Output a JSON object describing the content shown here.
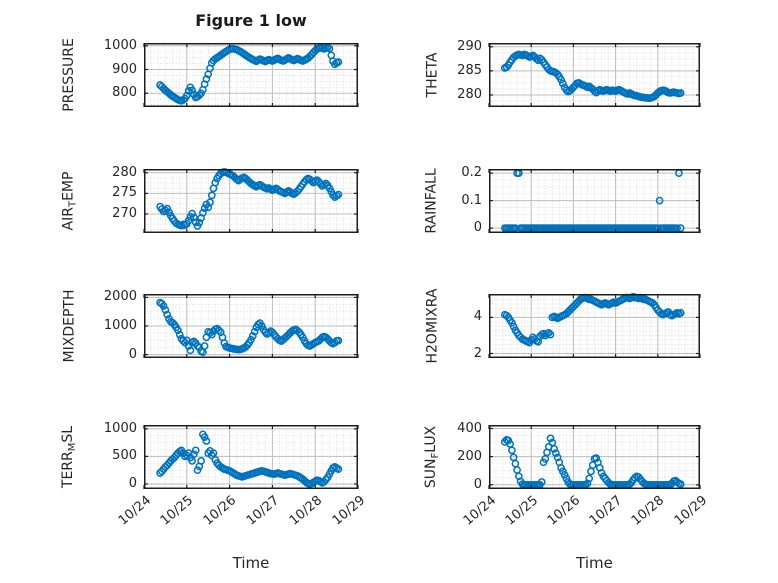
{
  "title": "Figure 1 low",
  "xlabel": "Time",
  "marker_color": "#0072BD",
  "axis": {
    "xlim": [
      24,
      29
    ],
    "xtick_values": [
      24,
      25,
      26,
      27,
      28,
      29
    ],
    "xtick_labels": [
      "10/24",
      "10/25",
      "10/26",
      "10/27",
      "10/28",
      "10/29"
    ],
    "xminor_step": 0.1666667,
    "grid": "on",
    "minor_grid": "dotted"
  },
  "x": [
    24.375,
    24.417,
    24.458,
    24.5,
    24.542,
    24.583,
    24.625,
    24.667,
    24.708,
    24.75,
    24.792,
    24.833,
    24.875,
    24.917,
    24.958,
    25,
    25.042,
    25.083,
    25.125,
    25.167,
    25.208,
    25.25,
    25.292,
    25.333,
    25.375,
    25.417,
    25.458,
    25.5,
    25.542,
    25.583,
    25.625,
    25.667,
    25.708,
    25.75,
    25.792,
    25.833,
    25.875,
    25.917,
    25.958,
    26,
    26.042,
    26.083,
    26.125,
    26.167,
    26.208,
    26.25,
    26.292,
    26.333,
    26.375,
    26.417,
    26.458,
    26.5,
    26.542,
    26.583,
    26.625,
    26.667,
    26.708,
    26.75,
    26.792,
    26.833,
    26.875,
    26.917,
    26.958,
    27,
    27.042,
    27.083,
    27.125,
    27.167,
    27.208,
    27.25,
    27.292,
    27.333,
    27.375,
    27.417,
    27.458,
    27.5,
    27.542,
    27.583,
    27.625,
    27.667,
    27.708,
    27.75,
    27.792,
    27.833,
    27.875,
    27.917,
    27.958,
    28,
    28.042,
    28.083,
    28.125,
    28.167,
    28.208,
    28.25,
    28.292,
    28.333,
    28.375,
    28.417,
    28.458,
    28.5,
    28.542
  ],
  "chart_data": [
    {
      "type": "scatter",
      "name": "PRESSURE",
      "ylabel_parts": [
        [
          "PRESSURE",
          0
        ]
      ],
      "yticks": [
        800,
        900,
        1000
      ],
      "ylim": [
        742,
        1012
      ],
      "yminor": 25,
      "y": [
        835,
        828,
        820,
        812,
        806,
        800,
        793,
        788,
        783,
        778,
        773,
        770,
        768,
        772,
        778,
        790,
        810,
        825,
        812,
        795,
        782,
        786,
        792,
        800,
        815,
        838,
        860,
        880,
        905,
        928,
        938,
        945,
        950,
        955,
        960,
        966,
        971,
        976,
        981,
        985,
        987,
        988,
        986,
        984,
        980,
        976,
        971,
        966,
        961,
        956,
        951,
        946,
        942,
        938,
        935,
        940,
        944,
        941,
        937,
        934,
        938,
        942,
        939,
        936,
        940,
        944,
        947,
        943,
        939,
        936,
        940,
        945,
        949,
        945,
        941,
        938,
        942,
        946,
        943,
        939,
        936,
        940,
        944,
        948,
        955,
        963,
        972,
        980,
        986,
        990,
        992,
        990,
        987,
        990,
        993,
        988,
        960,
        935,
        922,
        928,
        932
      ]
    },
    {
      "type": "scatter",
      "name": "THETA",
      "ylabel_parts": [
        [
          "THETA",
          0
        ]
      ],
      "yticks": [
        280,
        285,
        290
      ],
      "ylim": [
        277.5,
        290.8
      ],
      "yminor": 1.25,
      "y": [
        285.6,
        285.8,
        286.2,
        286.8,
        287.3,
        287.8,
        288.1,
        288.3,
        288.4,
        288.3,
        288.2,
        288.4,
        288.3,
        288.1,
        287.9,
        288.0,
        288.2,
        287.9,
        287.5,
        287.2,
        287.6,
        287.3,
        286.8,
        286.3,
        285.8,
        285.3,
        285.0,
        284.9,
        284.8,
        284.6,
        284.3,
        283.8,
        283.2,
        282.4,
        281.6,
        281.0,
        280.7,
        280.9,
        281.2,
        281.6,
        282.0,
        282.4,
        282.5,
        282.3,
        282.1,
        282.0,
        281.8,
        281.6,
        281.8,
        281.5,
        281.2,
        280.8,
        280.5,
        280.9,
        281.1,
        280.9,
        280.8,
        281.0,
        281.1,
        280.9,
        280.8,
        281.0,
        280.9,
        280.8,
        281.0,
        281.1,
        280.9,
        280.7,
        280.5,
        280.3,
        280.2,
        280.4,
        280.2,
        280.0,
        279.9,
        279.8,
        279.7,
        279.6,
        279.5,
        279.5,
        279.4,
        279.4,
        279.3,
        279.4,
        279.5,
        279.7,
        280.0,
        280.4,
        280.7,
        280.9,
        281.0,
        280.9,
        280.7,
        280.5,
        280.4,
        280.5,
        280.6,
        280.5,
        280.4,
        280.3,
        280.4
      ]
    },
    {
      "type": "scatter",
      "name": "AIR_TEMP",
      "ylabel_parts": [
        [
          "AIR",
          0
        ],
        [
          "T",
          1
        ],
        [
          "EMP",
          0
        ]
      ],
      "yticks": [
        270,
        275,
        280
      ],
      "ylim": [
        265.4,
        280.9
      ],
      "yminor": 1.25,
      "y": [
        271.8,
        271.2,
        270.6,
        270.9,
        271.3,
        270.4,
        269.6,
        268.9,
        268.3,
        267.8,
        267.5,
        267.3,
        267.2,
        267.5,
        267.3,
        267.6,
        268.4,
        269.3,
        270.1,
        269.2,
        268.0,
        267.1,
        267.9,
        269.0,
        270.3,
        271.4,
        272.3,
        271.6,
        272.8,
        274.5,
        276.2,
        277.6,
        278.6,
        279.3,
        279.8,
        280.1,
        280.2,
        280.1,
        279.9,
        279.7,
        279.5,
        279.2,
        278.8,
        278.4,
        278.1,
        278.4,
        278.7,
        278.9,
        278.6,
        278.2,
        277.8,
        277.4,
        277.1,
        276.8,
        276.6,
        276.9,
        277.1,
        276.8,
        276.5,
        276.3,
        276.1,
        276.3,
        276.0,
        275.8,
        276.0,
        276.2,
        275.9,
        275.6,
        275.4,
        275.2,
        275.0,
        275.3,
        275.6,
        275.3,
        275.0,
        274.8,
        275.1,
        275.5,
        276.0,
        276.6,
        277.2,
        277.8,
        278.3,
        278.6,
        278.4,
        278.0,
        277.6,
        277.9,
        278.2,
        277.8,
        277.3,
        276.8,
        277.1,
        277.4,
        276.9,
        276.2,
        275.4,
        274.6,
        274.1,
        274.4,
        274.7
      ]
    },
    {
      "type": "scatter",
      "name": "RAINFALL",
      "ylabel_parts": [
        [
          "RAINFALL",
          0
        ]
      ],
      "yticks": [
        0,
        0.1,
        0.2
      ],
      "ylim": [
        -0.018,
        0.215
      ],
      "yminor": 0.025,
      "y": [
        0,
        0,
        0,
        0,
        0,
        0,
        0,
        0.2,
        0.2,
        0,
        0,
        0,
        0,
        0,
        0,
        0,
        0,
        0,
        0,
        0,
        0,
        0,
        0,
        0,
        0,
        0,
        0,
        0,
        0,
        0,
        0,
        0,
        0,
        0,
        0,
        0,
        0,
        0,
        0,
        0,
        0,
        0,
        0,
        0,
        0,
        0,
        0,
        0,
        0,
        0,
        0,
        0,
        0,
        0,
        0,
        0,
        0,
        0,
        0,
        0,
        0,
        0,
        0,
        0,
        0,
        0,
        0,
        0,
        0,
        0,
        0,
        0,
        0,
        0,
        0,
        0,
        0,
        0,
        0,
        0,
        0,
        0,
        0,
        0,
        0,
        0,
        0,
        0,
        0.1,
        0,
        0,
        0,
        0,
        0,
        0,
        0,
        0,
        0,
        0,
        0.2,
        0
      ]
    },
    {
      "type": "scatter",
      "name": "MIXDEPTH",
      "ylabel_parts": [
        [
          "MIXDEPTH",
          0
        ]
      ],
      "yticks": [
        0,
        1000,
        2000
      ],
      "ylim": [
        -120,
        2120
      ],
      "yminor": 250,
      "y": [
        1820,
        1780,
        1700,
        1560,
        1400,
        1250,
        1150,
        1120,
        1050,
        950,
        850,
        700,
        560,
        480,
        420,
        500,
        300,
        150,
        420,
        460,
        400,
        300,
        250,
        120,
        80,
        300,
        600,
        800,
        760,
        700,
        820,
        880,
        910,
        850,
        780,
        600,
        400,
        280,
        250,
        230,
        220,
        200,
        190,
        180,
        170,
        180,
        200,
        230,
        270,
        330,
        420,
        520,
        650,
        800,
        950,
        1050,
        1100,
        1000,
        870,
        780,
        720,
        760,
        820,
        780,
        700,
        620,
        560,
        500,
        470,
        520,
        580,
        640,
        700,
        760,
        820,
        860,
        880,
        840,
        780,
        700,
        600,
        480,
        380,
        320,
        300,
        340,
        380,
        420,
        450,
        480,
        540,
        600,
        630,
        600,
        550,
        480,
        420,
        380,
        420,
        480,
        490
      ]
    },
    {
      "type": "scatter",
      "name": "H2OMIXRA",
      "ylabel_parts": [
        [
          "H2OMIXRA",
          0
        ]
      ],
      "yticks": [
        2,
        4
      ],
      "ylim": [
        1.75,
        5.3
      ],
      "yminor": 0.25,
      "y": [
        4.15,
        4.1,
        4.0,
        3.85,
        3.7,
        3.5,
        3.3,
        3.15,
        3.0,
        2.9,
        2.8,
        2.75,
        2.7,
        2.65,
        2.6,
        2.75,
        2.9,
        2.8,
        2.7,
        2.65,
        2.95,
        3.05,
        3.1,
        3.0,
        3.1,
        3.15,
        3.05,
        4.0,
        4.05,
        4.0,
        3.95,
        4.0,
        4.05,
        4.1,
        4.15,
        4.2,
        4.3,
        4.4,
        4.5,
        4.6,
        4.7,
        4.8,
        4.9,
        5.0,
        5.05,
        5.1,
        5.1,
        5.05,
        5.0,
        5.0,
        4.95,
        4.9,
        4.85,
        4.8,
        4.75,
        4.7,
        4.75,
        4.8,
        4.75,
        4.7,
        4.75,
        4.8,
        4.85,
        4.8,
        4.85,
        4.9,
        4.95,
        5.0,
        5.05,
        5.1,
        5.1,
        5.05,
        5.1,
        5.15,
        5.1,
        5.1,
        5.05,
        5.1,
        5.05,
        5.0,
        5.0,
        4.95,
        4.9,
        4.85,
        4.8,
        4.7,
        4.55,
        4.4,
        4.3,
        4.2,
        4.15,
        4.2,
        4.25,
        4.3,
        4.15,
        4.1,
        4.15,
        4.2,
        4.25,
        4.2,
        4.25
      ]
    },
    {
      "type": "scatter",
      "name": "TERR_MSL",
      "ylabel_parts": [
        [
          "TERR",
          0
        ],
        [
          "M",
          1
        ],
        [
          "SL",
          0
        ]
      ],
      "yticks": [
        0,
        500,
        1000
      ],
      "ylim": [
        -90,
        1070
      ],
      "yminor": 125,
      "y": [
        200,
        230,
        270,
        310,
        340,
        380,
        420,
        450,
        480,
        520,
        560,
        590,
        610,
        560,
        500,
        520,
        560,
        480,
        420,
        540,
        610,
        250,
        320,
        420,
        900,
        850,
        780,
        560,
        600,
        520,
        560,
        440,
        380,
        340,
        310,
        290,
        270,
        260,
        250,
        240,
        220,
        200,
        180,
        160,
        150,
        140,
        130,
        140,
        150,
        160,
        170,
        180,
        190,
        200,
        210,
        220,
        230,
        240,
        230,
        220,
        210,
        200,
        190,
        185,
        180,
        190,
        200,
        190,
        180,
        170,
        160,
        170,
        180,
        190,
        180,
        170,
        160,
        150,
        130,
        110,
        90,
        60,
        30,
        10,
        0,
        10,
        30,
        50,
        70,
        60,
        40,
        20,
        40,
        80,
        120,
        180,
        240,
        290,
        310,
        290,
        270
      ]
    },
    {
      "type": "scatter",
      "name": "SUN_FLUX",
      "ylabel_parts": [
        [
          "SUN",
          0
        ],
        [
          "F",
          1
        ],
        [
          "LUX",
          0
        ]
      ],
      "yticks": [
        0,
        200,
        400
      ],
      "ylim": [
        -30,
        425
      ],
      "yminor": 50,
      "y": [
        305,
        320,
        315,
        290,
        245,
        195,
        150,
        105,
        60,
        25,
        5,
        0,
        0,
        0,
        0,
        0,
        0,
        0,
        0,
        0,
        0,
        20,
        160,
        185,
        230,
        270,
        330,
        300,
        255,
        225,
        195,
        160,
        120,
        95,
        70,
        45,
        20,
        5,
        0,
        0,
        0,
        0,
        0,
        0,
        0,
        0,
        0,
        10,
        45,
        95,
        140,
        185,
        190,
        160,
        120,
        85,
        60,
        45,
        30,
        15,
        5,
        0,
        0,
        0,
        0,
        0,
        0,
        0,
        0,
        0,
        0,
        5,
        15,
        35,
        50,
        60,
        55,
        40,
        25,
        12,
        5,
        0,
        0,
        0,
        0,
        0,
        0,
        0,
        0,
        0,
        0,
        0,
        0,
        0,
        0,
        10,
        25,
        30,
        20,
        10,
        5
      ]
    }
  ]
}
